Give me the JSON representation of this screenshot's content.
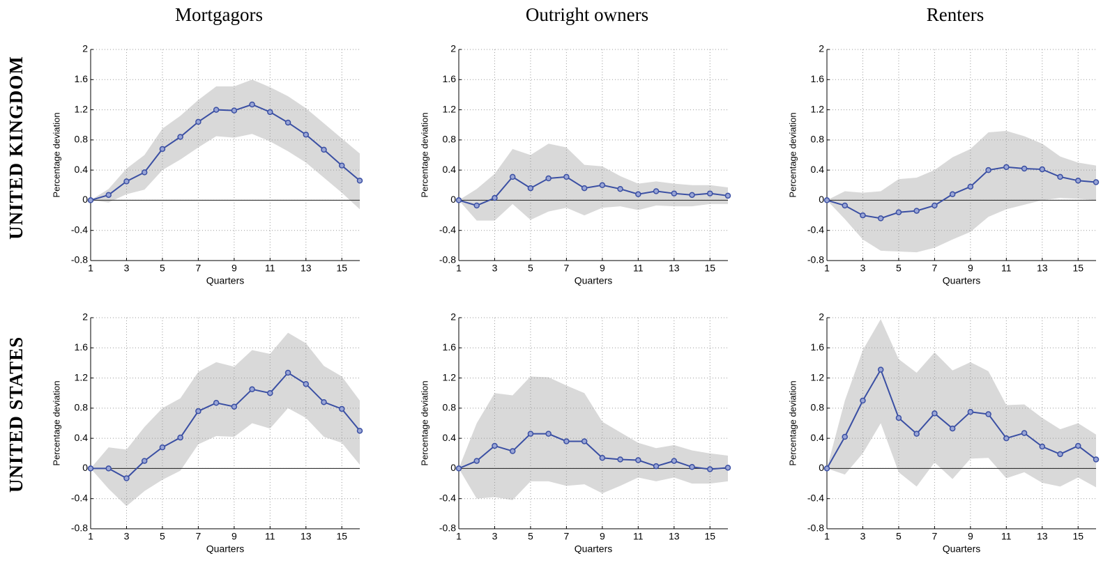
{
  "column_titles": [
    "Mortgagors",
    "Outright owners",
    "Renters"
  ],
  "row_titles": [
    "UNITED KINGDOM",
    "UNITED STATES"
  ],
  "chart_data": [
    {
      "type": "band-line",
      "ylabel": "Percentage deviation",
      "xlabel": "Quarters",
      "color": "#3a4fa3",
      "band_color": "#d9d9d9",
      "grid": true,
      "x": [
        1,
        2,
        3,
        4,
        5,
        6,
        7,
        8,
        9,
        10,
        11,
        12,
        13,
        14,
        15,
        16
      ],
      "values": [
        0,
        0.07,
        0.25,
        0.37,
        0.68,
        0.84,
        1.04,
        1.2,
        1.19,
        1.27,
        1.17,
        1.03,
        0.87,
        0.67,
        0.46,
        0.26
      ],
      "lower": [
        0,
        -0.03,
        0.08,
        0.14,
        0.4,
        0.54,
        0.7,
        0.85,
        0.83,
        0.88,
        0.78,
        0.65,
        0.5,
        0.3,
        0.1,
        -0.12
      ],
      "upper": [
        0,
        0.15,
        0.42,
        0.6,
        0.95,
        1.12,
        1.33,
        1.51,
        1.51,
        1.6,
        1.5,
        1.38,
        1.22,
        1.02,
        0.82,
        0.62
      ],
      "xlim": [
        1,
        16
      ],
      "xticks": [
        1,
        3,
        5,
        7,
        9,
        11,
        13,
        15
      ],
      "ylim": [
        -0.8,
        2
      ],
      "yticks": [
        -0.8,
        -0.4,
        0,
        0.4,
        0.8,
        1.2,
        1.6,
        2
      ]
    },
    {
      "type": "band-line",
      "ylabel": "Percentage deviation",
      "xlabel": "Quarters",
      "color": "#3a4fa3",
      "band_color": "#d9d9d9",
      "grid": true,
      "x": [
        1,
        2,
        3,
        4,
        5,
        6,
        7,
        8,
        9,
        10,
        11,
        12,
        13,
        14,
        15,
        16
      ],
      "values": [
        0,
        -0.07,
        0.03,
        0.31,
        0.16,
        0.29,
        0.31,
        0.16,
        0.2,
        0.15,
        0.08,
        0.12,
        0.09,
        0.07,
        0.09,
        0.06
      ],
      "lower": [
        0,
        -0.27,
        -0.27,
        -0.05,
        -0.26,
        -0.15,
        -0.1,
        -0.2,
        -0.1,
        -0.08,
        -0.13,
        -0.07,
        -0.08,
        -0.08,
        -0.05,
        -0.05
      ],
      "upper": [
        0,
        0.15,
        0.35,
        0.68,
        0.6,
        0.75,
        0.7,
        0.47,
        0.45,
        0.32,
        0.22,
        0.25,
        0.22,
        0.2,
        0.2,
        0.17
      ],
      "xlim": [
        1,
        16
      ],
      "xticks": [
        1,
        3,
        5,
        7,
        9,
        11,
        13,
        15
      ],
      "ylim": [
        -0.8,
        2
      ],
      "yticks": [
        -0.8,
        -0.4,
        0,
        0.4,
        0.8,
        1.2,
        1.6,
        2
      ]
    },
    {
      "type": "band-line",
      "ylabel": "Percentage deviation",
      "xlabel": "Quarters",
      "color": "#3a4fa3",
      "band_color": "#d9d9d9",
      "grid": true,
      "x": [
        1,
        2,
        3,
        4,
        5,
        6,
        7,
        8,
        9,
        10,
        11,
        12,
        13,
        14,
        15,
        16
      ],
      "values": [
        0,
        -0.07,
        -0.2,
        -0.24,
        -0.16,
        -0.14,
        -0.07,
        0.08,
        0.18,
        0.4,
        0.44,
        0.42,
        0.41,
        0.31,
        0.26,
        0.24
      ],
      "lower": [
        0,
        -0.25,
        -0.52,
        -0.67,
        -0.68,
        -0.69,
        -0.63,
        -0.52,
        -0.42,
        -0.22,
        -0.12,
        -0.06,
        0,
        0.03,
        0.02,
        0
      ],
      "upper": [
        0,
        0.12,
        0.1,
        0.12,
        0.28,
        0.3,
        0.4,
        0.57,
        0.68,
        0.9,
        0.92,
        0.85,
        0.75,
        0.58,
        0.5,
        0.46
      ],
      "xlim": [
        1,
        16
      ],
      "xticks": [
        1,
        3,
        5,
        7,
        9,
        11,
        13,
        15
      ],
      "ylim": [
        -0.8,
        2
      ],
      "yticks": [
        -0.8,
        -0.4,
        0,
        0.4,
        0.8,
        1.2,
        1.6,
        2
      ]
    },
    {
      "type": "band-line",
      "ylabel": "Percentage deviation",
      "xlabel": "Quarters",
      "color": "#3a4fa3",
      "band_color": "#d9d9d9",
      "grid": true,
      "x": [
        1,
        2,
        3,
        4,
        5,
        6,
        7,
        8,
        9,
        10,
        11,
        12,
        13,
        14,
        15,
        16
      ],
      "values": [
        0,
        0,
        -0.13,
        0.1,
        0.28,
        0.41,
        0.76,
        0.87,
        0.82,
        1.05,
        1.0,
        1.27,
        1.12,
        0.88,
        0.79,
        0.5
      ],
      "lower": [
        0,
        -0.27,
        -0.5,
        -0.3,
        -0.15,
        -0.03,
        0.32,
        0.43,
        0.42,
        0.6,
        0.53,
        0.8,
        0.67,
        0.42,
        0.34,
        0.05
      ],
      "upper": [
        0,
        0.28,
        0.25,
        0.55,
        0.8,
        0.93,
        1.28,
        1.41,
        1.35,
        1.57,
        1.52,
        1.8,
        1.66,
        1.36,
        1.22,
        0.9
      ],
      "xlim": [
        1,
        16
      ],
      "xticks": [
        1,
        3,
        5,
        7,
        9,
        11,
        13,
        15
      ],
      "ylim": [
        -0.8,
        2
      ],
      "yticks": [
        -0.8,
        -0.4,
        0,
        0.4,
        0.8,
        1.2,
        1.6,
        2
      ]
    },
    {
      "type": "band-line",
      "ylabel": "Percentage deviation",
      "xlabel": "Quarters",
      "color": "#3a4fa3",
      "band_color": "#d9d9d9",
      "grid": true,
      "x": [
        1,
        2,
        3,
        4,
        5,
        6,
        7,
        8,
        9,
        10,
        11,
        12,
        13,
        14,
        15,
        16
      ],
      "values": [
        0,
        0.1,
        0.3,
        0.23,
        0.46,
        0.46,
        0.36,
        0.36,
        0.14,
        0.12,
        0.11,
        0.03,
        0.1,
        0.02,
        -0.01,
        0.01
      ],
      "lower": [
        0,
        -0.4,
        -0.38,
        -0.42,
        -0.17,
        -0.17,
        -0.23,
        -0.21,
        -0.33,
        -0.23,
        -0.12,
        -0.17,
        -0.12,
        -0.2,
        -0.2,
        -0.17
      ],
      "upper": [
        0,
        0.6,
        1.0,
        0.97,
        1.22,
        1.21,
        1.1,
        1.0,
        0.62,
        0.48,
        0.34,
        0.27,
        0.31,
        0.24,
        0.2,
        0.17
      ],
      "xlim": [
        1,
        16
      ],
      "xticks": [
        1,
        3,
        5,
        7,
        9,
        11,
        13,
        15
      ],
      "ylim": [
        -0.8,
        2
      ],
      "yticks": [
        -0.8,
        -0.4,
        0,
        0.4,
        0.8,
        1.2,
        1.6,
        2
      ]
    },
    {
      "type": "band-line",
      "ylabel": "Percentage deviation",
      "xlabel": "Quarters",
      "color": "#3a4fa3",
      "band_color": "#d9d9d9",
      "grid": true,
      "x": [
        1,
        2,
        3,
        4,
        5,
        6,
        7,
        8,
        9,
        10,
        11,
        12,
        13,
        14,
        15,
        16
      ],
      "values": [
        0,
        0.42,
        0.9,
        1.31,
        0.67,
        0.46,
        0.73,
        0.53,
        0.75,
        0.72,
        0.4,
        0.47,
        0.29,
        0.19,
        0.3,
        0.12
      ],
      "lower": [
        0,
        -0.08,
        0.2,
        0.6,
        -0.05,
        -0.24,
        0.08,
        -0.14,
        0.13,
        0.14,
        -0.13,
        -0.05,
        -0.19,
        -0.24,
        -0.12,
        -0.25
      ],
      "upper": [
        0,
        0.9,
        1.57,
        1.98,
        1.45,
        1.27,
        1.54,
        1.3,
        1.41,
        1.29,
        0.84,
        0.85,
        0.67,
        0.52,
        0.6,
        0.45
      ],
      "xlim": [
        1,
        16
      ],
      "xticks": [
        1,
        3,
        5,
        7,
        9,
        11,
        13,
        15
      ],
      "ylim": [
        -0.8,
        2
      ],
      "yticks": [
        -0.8,
        -0.4,
        0,
        0.4,
        0.8,
        1.2,
        1.6,
        2
      ]
    }
  ]
}
